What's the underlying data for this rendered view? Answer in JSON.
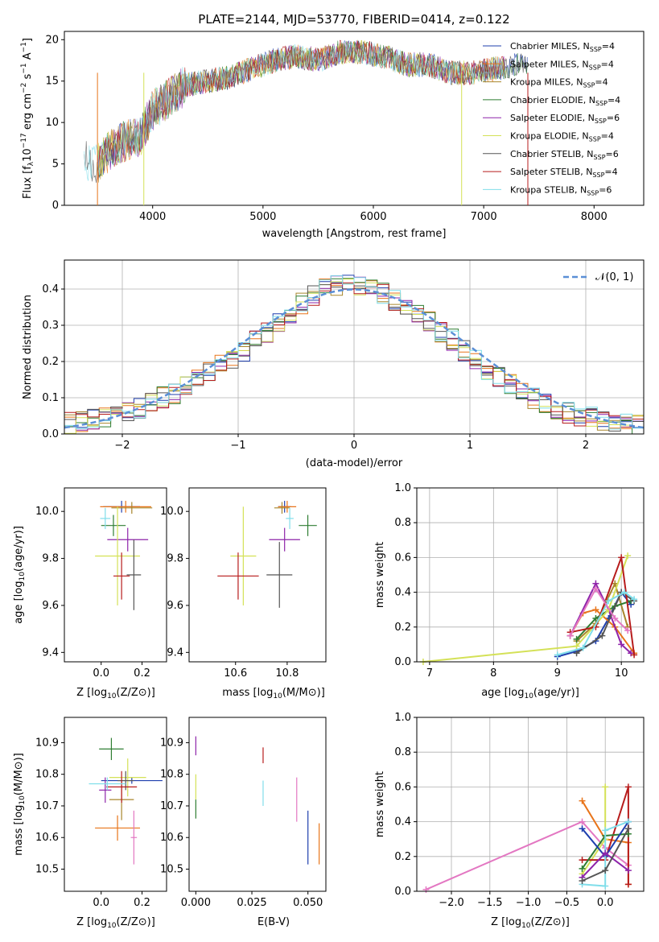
{
  "chart_data": [
    {
      "type": "line",
      "title": "PLATE=2144, MJD=53770, FIBERID=0414, z=0.122",
      "xlabel": "wavelength [Angstrom, rest frame]",
      "ylabel": "Flux [fλ10⁻¹⁷ erg cm⁻² s⁻¹ A⁻¹]",
      "xlim": [
        3200,
        8450
      ],
      "ylim": [
        0,
        21
      ],
      "xticks": [
        "4000",
        "5000",
        "6000",
        "7000",
        "8000"
      ],
      "yticks": [
        "0",
        "5",
        "10",
        "15",
        "20"
      ],
      "x": [
        3380,
        3500,
        3600,
        3700,
        3800,
        3900,
        4000,
        4100,
        4200,
        4300,
        4500,
        4700,
        4900,
        5100,
        5300,
        5500,
        5700,
        5900,
        6100,
        6300,
        6500,
        6700,
        6900,
        7100,
        7300,
        7400
      ],
      "observed": [
        5.5,
        5.0,
        6.5,
        7.5,
        8.0,
        8.5,
        11.5,
        12.5,
        13.5,
        14.5,
        15.0,
        15.5,
        16.5,
        17.5,
        18.0,
        17.5,
        18.5,
        18.5,
        18.0,
        17.0,
        17.0,
        16.0,
        16.0,
        16.5,
        17.0,
        17.0
      ],
      "legend_position": "upper right",
      "series": [
        {
          "name": "Chabrier MILES, N_SSP=4",
          "name_main": "Chabrier MILES, N",
          "name_sub": "SSP",
          "name_tail": "=4",
          "color": "#1f3fae"
        },
        {
          "name": "Salpeter MILES, N_SSP=4",
          "name_main": "Salpeter MILES, N",
          "name_sub": "SSP",
          "name_tail": "=4",
          "color": "#e8741a"
        },
        {
          "name": "Kroupa MILES, N_SSP=4",
          "name_main": "Kroupa MILES, N",
          "name_sub": "SSP",
          "name_tail": "=4",
          "color": "#a8862c"
        },
        {
          "name": "Chabrier ELODIE, N_SSP=4",
          "name_main": "Chabrier ELODIE, N",
          "name_sub": "SSP",
          "name_tail": "=4",
          "color": "#2e7d32"
        },
        {
          "name": "Salpeter ELODIE, N_SSP=6",
          "name_main": "Salpeter ELODIE, N",
          "name_sub": "SSP",
          "name_tail": "=6",
          "color": "#8e24aa"
        },
        {
          "name": "Kroupa ELODIE, N_SSP=4",
          "name_main": "Kroupa ELODIE, N",
          "name_sub": "SSP",
          "name_tail": "=4",
          "color": "#d4e157"
        },
        {
          "name": "Chabrier STELIB, N_SSP=6",
          "name_main": "Chabrier STELIB, N",
          "name_sub": "SSP",
          "name_tail": "=6",
          "color": "#555555"
        },
        {
          "name": "Salpeter STELIB, N_SSP=4",
          "name_main": "Salpeter STELIB, N",
          "name_sub": "SSP",
          "name_tail": "=4",
          "color": "#b71c1c"
        },
        {
          "name": "Kroupa STELIB, N_SSP=6",
          "name_main": "Kroupa STELIB, N",
          "name_sub": "SSP",
          "name_tail": "=6",
          "color": "#80deea"
        }
      ]
    },
    {
      "type": "bar",
      "xlabel": "(data-model)/error",
      "ylabel": "Normed distribution",
      "xlim": [
        -2.5,
        2.5
      ],
      "ylim": [
        0,
        0.48
      ],
      "xticks": [
        "−2",
        "−1",
        "0",
        "1",
        "2"
      ],
      "yticks": [
        "0.0",
        "0.1",
        "0.2",
        "0.3",
        "0.4"
      ],
      "grid": true,
      "bin_edges": [
        -2.5,
        -2.4,
        -2.3,
        -2.2,
        -2.1,
        -2.0,
        -1.9,
        -1.8,
        -1.7,
        -1.6,
        -1.5,
        -1.4,
        -1.3,
        -1.2,
        -1.1,
        -1.0,
        -0.9,
        -0.8,
        -0.7,
        -0.6,
        -0.5,
        -0.4,
        -0.3,
        -0.2,
        -0.1,
        0.0,
        0.1,
        0.2,
        0.3,
        0.4,
        0.5,
        0.6,
        0.7,
        0.8,
        0.9,
        1.0,
        1.1,
        1.2,
        1.3,
        1.4,
        1.5,
        1.6,
        1.7,
        1.8,
        1.9,
        2.0,
        2.1,
        2.2,
        2.3,
        2.4,
        2.5
      ],
      "values": [
        0.03,
        0.035,
        0.04,
        0.045,
        0.05,
        0.06,
        0.07,
        0.085,
        0.1,
        0.11,
        0.13,
        0.15,
        0.17,
        0.19,
        0.21,
        0.23,
        0.26,
        0.28,
        0.31,
        0.33,
        0.36,
        0.38,
        0.4,
        0.41,
        0.42,
        0.41,
        0.4,
        0.39,
        0.37,
        0.35,
        0.33,
        0.31,
        0.28,
        0.26,
        0.23,
        0.21,
        0.18,
        0.16,
        0.14,
        0.12,
        0.1,
        0.085,
        0.07,
        0.06,
        0.05,
        0.045,
        0.04,
        0.035,
        0.03,
        0.028
      ],
      "reference": {
        "label": "𝒩(0, 1)",
        "color": "#5b8fd6"
      },
      "legend_position": "upper right"
    },
    {
      "type": "scatter",
      "xlabel_main": "Z [log",
      "xlabel_sub": "10",
      "xlabel_tail": "(Z/Z⊙)]",
      "ylabel_main": "age  [log",
      "ylabel_sub": "10",
      "ylabel_tail": "(age/yr)]",
      "xlim": [
        -0.18,
        0.32
      ],
      "ylim": [
        9.36,
        10.1
      ],
      "xticks": [
        "0.0",
        "0.2"
      ],
      "yticks": [
        "9.4",
        "9.6",
        "9.8",
        "10.0"
      ],
      "points": [
        {
          "x": 0.1,
          "xerr": 0.18,
          "y": 10.02,
          "yerr": 0.05
        },
        {
          "x": 0.12,
          "xerr": 0.25,
          "y": 10.02,
          "yerr": 0.05
        },
        {
          "x": 0.15,
          "xerr": 0.2,
          "y": 10.015,
          "yerr": 0.05
        },
        {
          "x": 0.06,
          "xerr": 0.12,
          "y": 9.94,
          "yerr": 0.09
        },
        {
          "x": 0.13,
          "xerr": 0.2,
          "y": 9.88,
          "yerr": 0.1
        },
        {
          "x": 0.08,
          "xerr": 0.22,
          "y": 9.81,
          "yerr": 0.42
        },
        {
          "x": 0.16,
          "xerr": 0.07,
          "y": 9.73,
          "yerr": 0.3
        },
        {
          "x": 0.1,
          "xerr": 0.08,
          "y": 9.725,
          "yerr": 0.2
        },
        {
          "x": 0.02,
          "xerr": 0.05,
          "y": 9.97,
          "yerr": 0.09
        }
      ]
    },
    {
      "type": "scatter",
      "xlabel_main": "mass [log",
      "xlabel_sub": "10",
      "xlabel_tail": "(M/M⊙)]",
      "xlim": [
        10.42,
        10.95
      ],
      "ylim": [
        9.36,
        10.1
      ],
      "xticks": [
        "10.6",
        "10.8"
      ],
      "yticks": [
        "9.4",
        "9.6",
        "9.8",
        "10.0"
      ],
      "points": [
        {
          "x": 10.79,
          "xerr": 0.05,
          "y": 10.02,
          "yerr": 0.05
        },
        {
          "x": 10.8,
          "xerr": 0.07,
          "y": 10.02,
          "yerr": 0.05
        },
        {
          "x": 10.78,
          "xerr": 0.06,
          "y": 10.015,
          "yerr": 0.05
        },
        {
          "x": 10.88,
          "xerr": 0.07,
          "y": 9.94,
          "yerr": 0.09
        },
        {
          "x": 10.79,
          "xerr": 0.12,
          "y": 9.88,
          "yerr": 0.1
        },
        {
          "x": 10.63,
          "xerr": 0.1,
          "y": 9.81,
          "yerr": 0.42
        },
        {
          "x": 10.77,
          "xerr": 0.1,
          "y": 9.73,
          "yerr": 0.28
        },
        {
          "x": 10.61,
          "xerr": 0.16,
          "y": 9.725,
          "yerr": 0.2
        },
        {
          "x": 10.81,
          "xerr": 0.03,
          "y": 9.97,
          "yerr": 0.09
        }
      ]
    },
    {
      "type": "line",
      "xlabel_main": "age  [log",
      "xlabel_sub": "10",
      "xlabel_tail": "(age/yr)]",
      "ylabel": "mass weight",
      "xlim": [
        6.8,
        10.35
      ],
      "ylim": [
        0,
        1
      ],
      "xticks": [
        "7",
        "8",
        "9",
        "10"
      ],
      "yticks": [
        "0.0",
        "0.2",
        "0.4",
        "0.6",
        "0.8",
        "1.0"
      ],
      "grid": true,
      "series": [
        {
          "color": "#1f3fae",
          "x": [
            9.0,
            9.3,
            9.6,
            9.8,
            10.0,
            10.15
          ],
          "y": [
            0.03,
            0.06,
            0.12,
            0.25,
            0.4,
            0.33
          ]
        },
        {
          "color": "#e8741a",
          "x": [
            9.2,
            9.4,
            9.6,
            9.9,
            10.2
          ],
          "y": [
            0.15,
            0.28,
            0.3,
            0.2,
            0.05
          ]
        },
        {
          "color": "#a8862c",
          "x": [
            9.3,
            9.6,
            9.9,
            10.1
          ],
          "y": [
            0.12,
            0.22,
            0.45,
            0.2
          ]
        },
        {
          "color": "#2e7d32",
          "x": [
            9.3,
            9.6,
            9.9,
            10.15
          ],
          "y": [
            0.13,
            0.25,
            0.32,
            0.35
          ]
        },
        {
          "color": "#8e24aa",
          "x": [
            9.2,
            9.6,
            9.8,
            10.0,
            10.15
          ],
          "y": [
            0.15,
            0.45,
            0.3,
            0.1,
            0.05
          ]
        },
        {
          "color": "#d4e157",
          "x": [
            6.9,
            9.3,
            9.8,
            10.1
          ],
          "y": [
            0.0,
            0.09,
            0.3,
            0.61
          ]
        },
        {
          "color": "#555555",
          "x": [
            9.3,
            9.7,
            10.0,
            10.2
          ],
          "y": [
            0.05,
            0.15,
            0.4,
            0.35
          ]
        },
        {
          "color": "#b71c1c",
          "x": [
            9.2,
            9.6,
            10.0,
            10.2
          ],
          "y": [
            0.17,
            0.2,
            0.6,
            0.04
          ]
        },
        {
          "color": "#80deea",
          "x": [
            9.0,
            9.4,
            9.8,
            10.05,
            10.2
          ],
          "y": [
            0.04,
            0.08,
            0.35,
            0.4,
            0.36
          ]
        },
        {
          "color": "#e377c2",
          "x": [
            9.2,
            9.6,
            9.9,
            10.1
          ],
          "y": [
            0.15,
            0.42,
            0.25,
            0.18
          ]
        }
      ]
    },
    {
      "type": "scatter",
      "xlabel_main": "Z [log",
      "xlabel_sub": "10",
      "xlabel_tail": "(Z/Z⊙)]",
      "ylabel_main": "mass [log",
      "ylabel_sub": "10",
      "ylabel_tail": "(M/M⊙)]",
      "xlim": [
        -0.18,
        0.32
      ],
      "ylim": [
        10.43,
        10.98
      ],
      "xticks": [
        "0.0",
        "0.2"
      ],
      "yticks": [
        "10.5",
        "10.6",
        "10.7",
        "10.8",
        "10.9"
      ],
      "points": [
        {
          "x": 0.15,
          "xerr": 0.3,
          "y": 10.78,
          "yerr": 0.02
        },
        {
          "x": 0.08,
          "xerr": 0.22,
          "y": 10.63,
          "yerr": 0.08
        },
        {
          "x": 0.1,
          "xerr": 0.12,
          "y": 10.72,
          "yerr": 0.13
        },
        {
          "x": 0.05,
          "xerr": 0.12,
          "y": 10.88,
          "yerr": 0.07
        },
        {
          "x": 0.02,
          "xerr": 0.06,
          "y": 10.75,
          "yerr": 0.08
        },
        {
          "x": 0.13,
          "xerr": 0.18,
          "y": 10.79,
          "yerr": 0.12
        },
        {
          "x": 0.12,
          "xerr": 0.08,
          "y": 10.78,
          "yerr": 0.06
        },
        {
          "x": 0.1,
          "xerr": 0.15,
          "y": 10.76,
          "yerr": 0.1
        },
        {
          "x": 0.03,
          "xerr": 0.18,
          "y": 10.77,
          "yerr": 0.04
        },
        {
          "x": 0.16,
          "xerr": 0.03,
          "y": 10.6,
          "yerr": 0.17
        }
      ]
    },
    {
      "type": "scatter",
      "xlabel": "E(B-V)",
      "xlim": [
        -0.003,
        0.058
      ],
      "ylim": [
        10.43,
        10.98
      ],
      "xticks": [
        "0.000",
        "0.025",
        "0.050"
      ],
      "yticks": [
        "10.5",
        "10.6",
        "10.7",
        "10.8",
        "10.9"
      ],
      "points": [
        {
          "x": 0.0,
          "y": 10.89,
          "yerr": 0.06,
          "color": "#8e24aa"
        },
        {
          "x": 0.0,
          "y": 10.76,
          "yerr": 0.08,
          "color": "#d4e157"
        },
        {
          "x": 0.0,
          "y": 10.69,
          "yerr": 0.06,
          "color": "#2e7d32"
        },
        {
          "x": 0.03,
          "y": 10.86,
          "yerr": 0.05,
          "color": "#b71c1c"
        },
        {
          "x": 0.03,
          "y": 10.74,
          "yerr": 0.08,
          "color": "#80deea"
        },
        {
          "x": 0.045,
          "y": 10.72,
          "yerr": 0.14,
          "color": "#e377c2"
        },
        {
          "x": 0.05,
          "y": 10.6,
          "yerr": 0.17,
          "color": "#1f3fae"
        },
        {
          "x": 0.055,
          "y": 10.58,
          "yerr": 0.13,
          "color": "#e8741a"
        }
      ]
    },
    {
      "type": "line",
      "xlabel_main": "Z [log",
      "xlabel_sub": "10",
      "xlabel_tail": "(Z/Z⊙)]",
      "ylabel": "mass weight",
      "xlim": [
        -2.45,
        0.5
      ],
      "ylim": [
        0,
        1
      ],
      "xticks": [
        "−2.0",
        "−1.5",
        "−1.0",
        "−0.5",
        "0.0"
      ],
      "yticks": [
        "0.0",
        "0.2",
        "0.4",
        "0.6",
        "0.8",
        "1.0"
      ],
      "grid": true,
      "series": [
        {
          "color": "#e377c2",
          "x": [
            -2.33,
            -0.3,
            0.0,
            0.3
          ],
          "y": [
            0.01,
            0.4,
            0.25,
            0.15
          ]
        },
        {
          "color": "#e8741a",
          "x": [
            -0.3,
            0.0,
            0.3,
            0.3
          ],
          "y": [
            0.52,
            0.3,
            0.28,
            0.04
          ]
        },
        {
          "color": "#d4e157",
          "x": [
            -0.3,
            0.0,
            0.0
          ],
          "y": [
            0.1,
            0.3,
            0.6
          ]
        },
        {
          "color": "#b71c1c",
          "x": [
            -0.3,
            0.0,
            0.3,
            0.3
          ],
          "y": [
            0.18,
            0.18,
            0.6,
            0.04
          ]
        },
        {
          "color": "#2e7d32",
          "x": [
            -0.3,
            0.0,
            0.3
          ],
          "y": [
            0.13,
            0.32,
            0.33
          ]
        },
        {
          "color": "#1f3fae",
          "x": [
            -0.3,
            0.0,
            0.3
          ],
          "y": [
            0.36,
            0.2,
            0.4
          ]
        },
        {
          "color": "#80deea",
          "x": [
            -0.3,
            0.0,
            0.0,
            0.3
          ],
          "y": [
            0.04,
            0.03,
            0.35,
            0.4
          ]
        },
        {
          "color": "#8e24aa",
          "x": [
            -0.3,
            0.0,
            0.3
          ],
          "y": [
            0.08,
            0.22,
            0.12
          ]
        },
        {
          "color": "#555555",
          "x": [
            -0.3,
            0.0,
            0.3
          ],
          "y": [
            0.06,
            0.12,
            0.36
          ]
        }
      ]
    }
  ]
}
